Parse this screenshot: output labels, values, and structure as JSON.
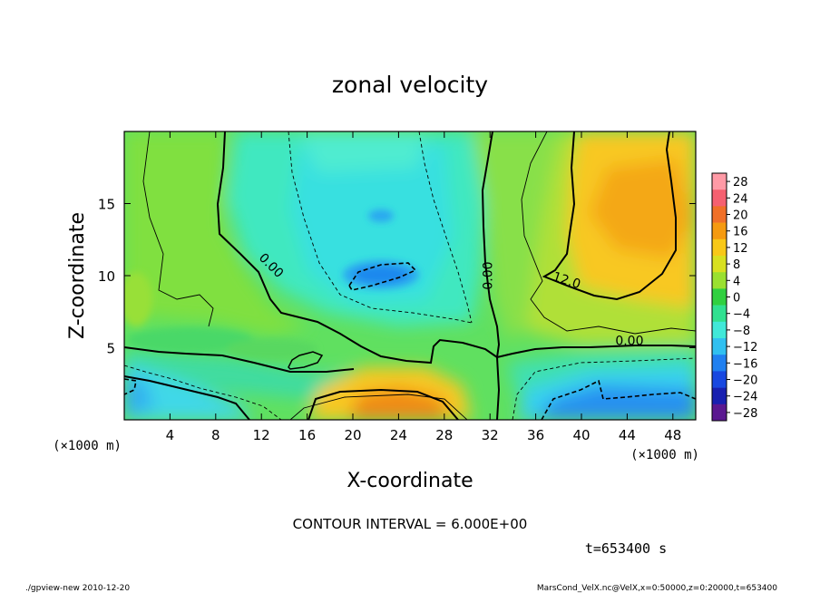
{
  "chart_data": {
    "type": "heatmap",
    "title": "zonal velocity",
    "xlabel": "X-coordinate",
    "ylabel": "Z-coordinate",
    "x_unit_label": "(×1000 m)",
    "y_unit_label": "(×1000 m)",
    "xlim": [
      0,
      50
    ],
    "ylim": [
      0,
      20
    ],
    "x_ticks": [
      4,
      8,
      12,
      16,
      20,
      24,
      28,
      32,
      36,
      40,
      44,
      48
    ],
    "y_ticks": [
      5,
      10,
      15
    ],
    "colorbar": {
      "levels": [
        28,
        24,
        20,
        16,
        12,
        8,
        4,
        0,
        -4,
        -8,
        -12,
        -16,
        -20,
        -24,
        -28
      ],
      "colors": [
        "#ff9aa6",
        "#f56070",
        "#f07028",
        "#f59a10",
        "#f8c818",
        "#d8e020",
        "#9ae030",
        "#30d040",
        "#30e090",
        "#40e8d8",
        "#30c0f0",
        "#2080f0",
        "#1848e0",
        "#1820b0",
        "#5a1890"
      ]
    },
    "contour_labels": [
      {
        "text": "0.00",
        "x": 12.6,
        "z": 10.5
      },
      {
        "text": "0.00",
        "x": 32.2,
        "z": 10.0
      },
      {
        "text": "12.0",
        "x": 38.6,
        "z": 9.4
      },
      {
        "text": "0.00",
        "x": 44.2,
        "z": 5.2
      }
    ],
    "contour_interval_text": "CONTOUR INTERVAL = 6.000E+00",
    "time_text": "t=653400 s",
    "footer_left": "./gpview-new  2010-12-20",
    "footer_right": "MarsCond_VelX.nc@VelX,x=0:50000,z=0:20000,t=653400"
  }
}
